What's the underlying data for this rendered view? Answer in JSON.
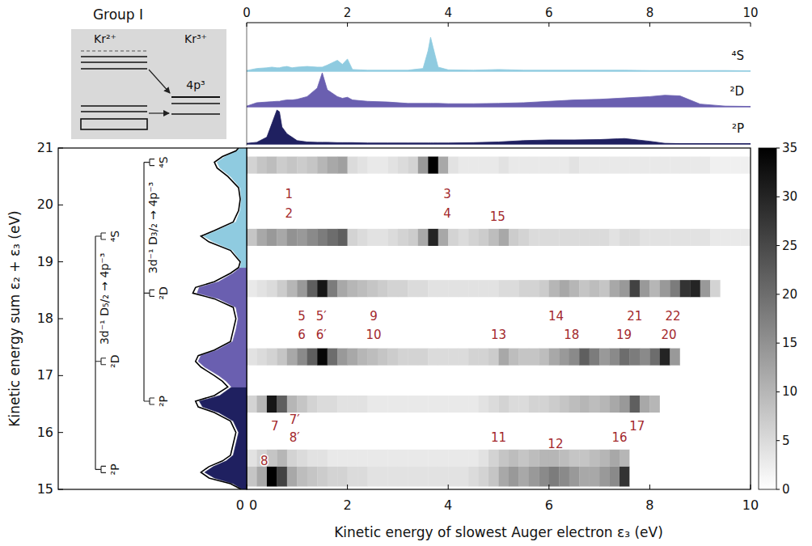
{
  "chart_data": [
    {
      "type": "heatmap",
      "x_label": "Kinetic energy of slowest Auger electron ε₃ (eV)",
      "y_label": "Kinetic energy sum ε₂ + ε₃ (eV)",
      "xlim": [
        0,
        10
      ],
      "ylim": [
        15,
        21
      ],
      "xticks": [
        0,
        2,
        4,
        6,
        8,
        10
      ],
      "yticks": [
        15,
        16,
        17,
        18,
        19,
        20,
        21
      ],
      "x_bins": [
        0,
        0.2,
        0.4,
        0.6,
        0.8,
        1,
        1.2,
        1.4,
        1.6,
        1.8,
        2,
        2.2,
        2.4,
        2.6,
        2.8,
        3,
        3.2,
        3.4,
        3.6,
        3.8,
        4,
        4.2,
        4.4,
        4.6,
        4.8,
        5,
        5.2,
        5.4,
        5.6,
        5.8,
        6,
        6.2,
        6.4,
        6.6,
        6.8,
        7,
        7.2,
        7.4,
        7.6,
        7.8,
        8,
        8.2,
        8.4,
        8.6,
        8.8,
        9,
        9.2,
        9.4,
        9.6,
        9.8,
        10
      ],
      "rows": [
        {
          "y_range": [
            20.55,
            20.85
          ],
          "values": [
            6,
            8,
            9,
            7,
            8,
            7,
            8,
            10,
            12,
            13,
            5,
            4,
            3,
            3,
            4,
            5,
            6,
            14,
            35,
            12,
            4,
            3,
            3,
            3,
            3,
            4,
            3,
            3,
            3,
            3,
            3,
            3,
            4,
            3,
            3,
            3,
            3,
            3,
            3,
            3,
            3,
            3,
            3,
            3,
            3,
            3,
            2,
            2,
            2,
            2
          ]
        },
        {
          "y_range": [
            19.28,
            19.58
          ],
          "values": [
            8,
            12,
            14,
            12,
            15,
            14,
            16,
            18,
            20,
            22,
            6,
            5,
            4,
            4,
            5,
            6,
            7,
            12,
            30,
            12,
            6,
            5,
            6,
            7,
            9,
            12,
            7,
            6,
            5,
            5,
            5,
            5,
            5,
            5,
            5,
            5,
            4,
            5,
            5,
            4,
            4,
            4,
            4,
            4,
            4,
            4,
            3,
            3,
            3,
            3
          ]
        },
        {
          "y_range": [
            18.38,
            18.68
          ],
          "values": [
            3,
            4,
            5,
            7,
            10,
            14,
            22,
            32,
            18,
            12,
            10,
            9,
            8,
            7,
            6,
            6,
            5,
            5,
            4,
            4,
            4,
            4,
            4,
            4,
            4,
            5,
            5,
            6,
            6,
            7,
            10,
            12,
            10,
            8,
            9,
            8,
            12,
            14,
            26,
            14,
            10,
            14,
            18,
            28,
            30,
            14,
            6,
            0,
            0,
            0
          ]
        },
        {
          "y_range": [
            17.18,
            17.48
          ],
          "values": [
            4,
            5,
            6,
            8,
            12,
            16,
            22,
            34,
            20,
            14,
            12,
            10,
            9,
            8,
            7,
            6,
            6,
            6,
            5,
            5,
            5,
            5,
            6,
            6,
            7,
            12,
            9,
            8,
            8,
            9,
            12,
            14,
            16,
            22,
            18,
            14,
            16,
            20,
            18,
            16,
            20,
            30,
            14,
            0,
            0,
            0,
            0,
            0,
            0,
            0
          ]
        },
        {
          "y_range": [
            16.35,
            16.65
          ],
          "values": [
            6,
            10,
            32,
            22,
            10,
            8,
            6,
            5,
            5,
            4,
            4,
            4,
            3,
            3,
            3,
            3,
            3,
            3,
            3,
            3,
            3,
            3,
            3,
            4,
            5,
            6,
            5,
            5,
            6,
            6,
            7,
            8,
            9,
            10,
            9,
            10,
            12,
            14,
            22,
            12,
            10,
            0,
            0,
            0,
            0,
            0,
            0,
            0,
            0,
            0
          ]
        },
        {
          "y_range": [
            15.4,
            15.7
          ],
          "values": [
            4,
            6,
            8,
            10,
            6,
            5,
            4,
            4,
            3,
            3,
            3,
            3,
            3,
            3,
            3,
            3,
            3,
            3,
            3,
            3,
            3,
            3,
            3,
            4,
            6,
            8,
            9,
            8,
            9,
            10,
            10,
            9,
            8,
            8,
            9,
            10,
            12,
            10,
            0,
            0,
            0,
            0,
            0,
            0,
            0,
            0,
            0,
            0,
            0,
            0
          ]
        },
        {
          "y_range": [
            15.05,
            15.4
          ],
          "values": [
            8,
            12,
            35,
            26,
            12,
            9,
            8,
            7,
            6,
            6,
            5,
            5,
            4,
            4,
            4,
            4,
            4,
            4,
            4,
            4,
            4,
            4,
            5,
            6,
            8,
            12,
            14,
            12,
            14,
            16,
            18,
            16,
            14,
            12,
            12,
            14,
            16,
            28,
            0,
            0,
            0,
            0,
            0,
            0,
            0,
            0,
            0,
            0,
            0,
            0
          ]
        }
      ],
      "colorbar": {
        "range": [
          0,
          35
        ],
        "ticks": [
          0,
          5,
          10,
          15,
          20,
          25,
          30,
          35
        ]
      },
      "annotations": [
        {
          "text": "1",
          "x": 0.84,
          "y": 20.19
        },
        {
          "text": "2",
          "x": 0.84,
          "y": 19.85
        },
        {
          "text": "3",
          "x": 3.98,
          "y": 20.19
        },
        {
          "text": "4",
          "x": 3.98,
          "y": 19.85
        },
        {
          "text": "15",
          "x": 4.98,
          "y": 19.79
        },
        {
          "text": "5",
          "x": 1.09,
          "y": 18.04
        },
        {
          "text": "5′",
          "x": 1.48,
          "y": 18.04
        },
        {
          "text": "9",
          "x": 2.52,
          "y": 18.04
        },
        {
          "text": "14",
          "x": 6.14,
          "y": 18.04
        },
        {
          "text": "21",
          "x": 7.7,
          "y": 18.04
        },
        {
          "text": "22",
          "x": 8.46,
          "y": 18.04
        },
        {
          "text": "6",
          "x": 1.09,
          "y": 17.71
        },
        {
          "text": "6′",
          "x": 1.48,
          "y": 17.71
        },
        {
          "text": "10",
          "x": 2.52,
          "y": 17.71
        },
        {
          "text": "13",
          "x": 5.0,
          "y": 17.71
        },
        {
          "text": "18",
          "x": 6.45,
          "y": 17.71
        },
        {
          "text": "19",
          "x": 7.49,
          "y": 17.71
        },
        {
          "text": "20",
          "x": 8.38,
          "y": 17.71
        },
        {
          "text": "7",
          "x": 0.56,
          "y": 16.11
        },
        {
          "text": "7′",
          "x": 0.95,
          "y": 16.22
        },
        {
          "text": "8′",
          "x": 0.95,
          "y": 15.91
        },
        {
          "text": "11",
          "x": 5.0,
          "y": 15.91
        },
        {
          "text": "12",
          "x": 6.13,
          "y": 15.79
        },
        {
          "text": "16",
          "x": 7.4,
          "y": 15.91
        },
        {
          "text": "17",
          "x": 7.75,
          "y": 16.11
        },
        {
          "text": "8",
          "x": 0.35,
          "y": 15.5
        }
      ]
    },
    {
      "type": "area",
      "xlim": [
        0,
        10
      ],
      "ylim": [
        0,
        1
      ],
      "xticks": [
        0,
        2,
        4,
        6,
        8,
        10
      ],
      "tick_labels": "x",
      "x": [
        0,
        0.2,
        0.4,
        0.5,
        0.6,
        0.65,
        0.7,
        0.8,
        0.9,
        1.0,
        1.2,
        1.4,
        1.5,
        1.6,
        1.8,
        1.9,
        2.0,
        2.1,
        2.4,
        2.8,
        3.2,
        3.5,
        3.6,
        3.65,
        3.7,
        3.8,
        4.0,
        4.5,
        5,
        5.5,
        6,
        6.5,
        7,
        7.5,
        8,
        8.3,
        8.6,
        9,
        9.5,
        10
      ],
      "series": [
        {
          "name": "⁴S",
          "color": "#8fcbe0",
          "values": [
            0.02,
            0.08,
            0.1,
            0.12,
            0.1,
            0.1,
            0.12,
            0.14,
            0.1,
            0.12,
            0.14,
            0.12,
            0.12,
            0.18,
            0.32,
            0.2,
            0.36,
            0.05,
            0.03,
            0.03,
            0.03,
            0.08,
            0.6,
            1.0,
            0.7,
            0.12,
            0.04,
            0.03,
            0.05,
            0.03,
            0.03,
            0.03,
            0.03,
            0.03,
            0.02,
            0.02,
            0.02,
            0.02,
            0.02,
            0.01
          ]
        },
        {
          "name": "²D",
          "color": "#6a5fb0",
          "values": [
            0.02,
            0.12,
            0.14,
            0.15,
            0.16,
            0.16,
            0.18,
            0.2,
            0.2,
            0.22,
            0.3,
            0.55,
            1.0,
            0.5,
            0.3,
            0.25,
            0.28,
            0.2,
            0.16,
            0.14,
            0.1,
            0.1,
            0.1,
            0.1,
            0.1,
            0.1,
            0.09,
            0.09,
            0.1,
            0.12,
            0.16,
            0.2,
            0.22,
            0.26,
            0.3,
            0.34,
            0.32,
            0.08,
            0.02,
            0.01
          ]
        },
        {
          "name": "²P",
          "color": "#1f2060",
          "values": [
            0.02,
            0.05,
            0.2,
            0.6,
            1.0,
            0.95,
            0.5,
            0.3,
            0.2,
            0.1,
            0.06,
            0.05,
            0.05,
            0.05,
            0.04,
            0.04,
            0.04,
            0.04,
            0.03,
            0.03,
            0.03,
            0.03,
            0.03,
            0.03,
            0.03,
            0.03,
            0.03,
            0.04,
            0.06,
            0.1,
            0.12,
            0.12,
            0.13,
            0.16,
            0.08,
            0.02,
            0.01,
            0.01,
            0.01,
            0.01
          ]
        }
      ]
    },
    {
      "type": "area",
      "orientation": "horizontal",
      "xlim": [
        3.5,
        0
      ],
      "ylim": [
        15,
        21
      ],
      "xticks": [
        0
      ],
      "tick_labels": "x",
      "y": [
        15.0,
        15.1,
        15.2,
        15.3,
        15.4,
        15.5,
        15.6,
        15.8,
        16.0,
        16.2,
        16.35,
        16.45,
        16.55,
        16.65,
        16.8,
        16.9,
        17.0,
        17.15,
        17.25,
        17.35,
        17.45,
        17.6,
        17.8,
        18.0,
        18.2,
        18.35,
        18.45,
        18.55,
        18.65,
        18.8,
        18.9,
        19.0,
        19.2,
        19.35,
        19.45,
        19.55,
        19.7,
        19.9,
        20.1,
        20.3,
        20.5,
        20.65,
        20.75,
        20.85,
        20.95,
        21.0
      ],
      "series": [
        {
          "type": "area",
          "color": "#1f2060",
          "values": [
            0.08,
            0.25,
            0.6,
            0.78,
            0.62,
            0.38,
            0.25,
            0.2,
            0.15,
            0.25,
            0.52,
            0.82,
            0.88,
            0.5,
            0.28,
            null,
            null,
            null,
            null,
            null,
            null,
            null,
            null,
            null,
            null,
            null,
            null,
            null,
            null,
            null,
            null,
            null,
            null,
            null,
            null,
            null,
            null,
            null,
            null,
            null,
            null,
            null,
            null,
            null,
            null,
            null
          ]
        },
        {
          "type": "area",
          "color": "#6a5fb0",
          "values": [
            null,
            null,
            null,
            null,
            null,
            null,
            null,
            null,
            null,
            null,
            null,
            null,
            null,
            null,
            0.28,
            0.38,
            0.52,
            0.78,
            0.9,
            0.85,
            0.55,
            0.26,
            0.2,
            0.16,
            0.2,
            0.52,
            0.92,
            0.88,
            0.52,
            0.25,
            0.12,
            null,
            null,
            null,
            null,
            null,
            null,
            null,
            null,
            null,
            null,
            null,
            null,
            null,
            null,
            null
          ]
        },
        {
          "type": "area",
          "color": "#8fcbe0",
          "values": [
            null,
            null,
            null,
            null,
            null,
            null,
            null,
            null,
            null,
            null,
            null,
            null,
            null,
            null,
            null,
            null,
            null,
            null,
            null,
            null,
            null,
            null,
            null,
            null,
            null,
            null,
            null,
            null,
            null,
            null,
            0.12,
            0.1,
            0.26,
            0.62,
            0.8,
            0.55,
            0.2,
            0.12,
            0.1,
            0.12,
            0.3,
            0.5,
            0.55,
            0.4,
            0.18,
            0.12
          ]
        },
        {
          "type": "line",
          "color": "#000000",
          "values": [
            0.1,
            0.3,
            0.7,
            0.85,
            0.7,
            0.45,
            0.3,
            0.25,
            0.2,
            0.3,
            0.6,
            0.9,
            0.95,
            0.6,
            0.35,
            0.45,
            0.6,
            0.85,
            0.95,
            0.9,
            0.6,
            0.3,
            0.25,
            0.2,
            0.25,
            0.6,
            1.0,
            0.95,
            0.6,
            0.3,
            0.15,
            0.12,
            0.3,
            0.7,
            0.85,
            0.6,
            0.25,
            0.15,
            0.12,
            0.15,
            0.35,
            0.55,
            0.6,
            0.45,
            0.2,
            0.15
          ]
        }
      ],
      "brackets": [
        {
          "label": "3d⁻¹ D₅/₂ → 4p⁻³",
          "levels": [
            {
              "label": "⁴S",
              "y": 19.45
            },
            {
              "label": "²D",
              "y": 17.25
            },
            {
              "label": "²P",
              "y": 15.35
            }
          ]
        },
        {
          "label": "3d⁻¹ D₃/₂ → 4p⁻³",
          "levels": [
            {
              "label": "⁴S",
              "y": 20.75
            },
            {
              "label": "²D",
              "y": 18.45
            },
            {
              "label": "²P",
              "y": 16.55
            }
          ]
        }
      ]
    }
  ],
  "inset": {
    "title": "Group I",
    "left_label": "Kr²⁺",
    "right_label": "Kr³⁺",
    "level_label": "4p³"
  }
}
